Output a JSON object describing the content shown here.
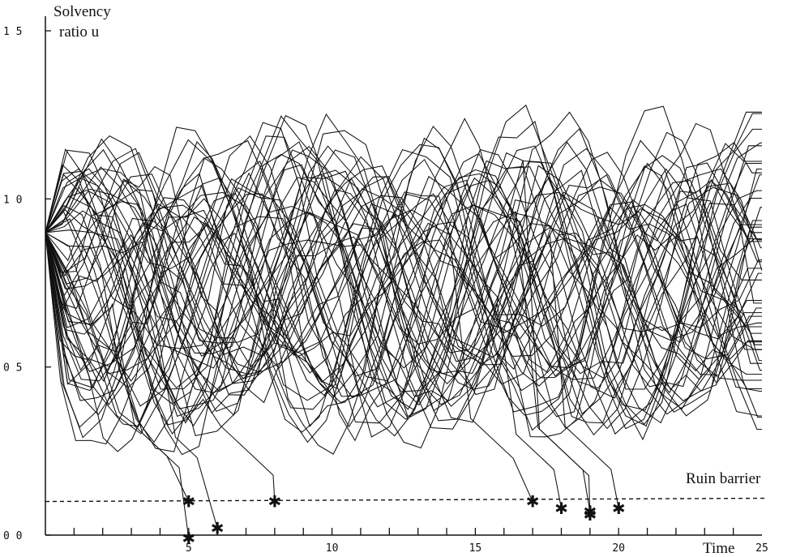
{
  "chart_data": {
    "type": "line",
    "ylabel": "Solvency ratio u",
    "xlabel": "Time",
    "xlim": [
      0,
      25
    ],
    "ylim": [
      0,
      1.5
    ],
    "y_tick_labels": [
      {
        "value": 1.5,
        "label": "1 5"
      },
      {
        "value": 1.0,
        "label": "1 0"
      },
      {
        "value": 0.5,
        "label": "0 5"
      },
      {
        "value": 0.0,
        "label": "0 0"
      }
    ],
    "x_tick_labels": [
      {
        "value": 5,
        "label": "5"
      },
      {
        "value": 10,
        "label": "10"
      },
      {
        "value": 15,
        "label": "15"
      },
      {
        "value": 20,
        "label": "20"
      },
      {
        "value": 25,
        "label": "25"
      }
    ],
    "x_minor_ticks": [
      1,
      2,
      3,
      4,
      5,
      6,
      7,
      8,
      9,
      10,
      11,
      12,
      13,
      14,
      15,
      16,
      17,
      18,
      19,
      20,
      21,
      22,
      23,
      24
    ],
    "start_value": 0.9,
    "ruin_barrier": {
      "value": 0.1,
      "label": "Ruin barrier"
    },
    "ruin_events": [
      {
        "time": 5,
        "u": 0.1
      },
      {
        "time": 5,
        "u": -0.01
      },
      {
        "time": 6,
        "u": 0.02
      },
      {
        "time": 8,
        "u": 0.1
      },
      {
        "time": 17,
        "u": 0.1
      },
      {
        "time": 18,
        "u": 0.08
      },
      {
        "time": 19,
        "u": 0.07
      },
      {
        "time": 19,
        "u": 0.06
      },
      {
        "time": 20,
        "u": 0.08
      }
    ],
    "simulated_paths": 60,
    "cycle_period": 8
  }
}
